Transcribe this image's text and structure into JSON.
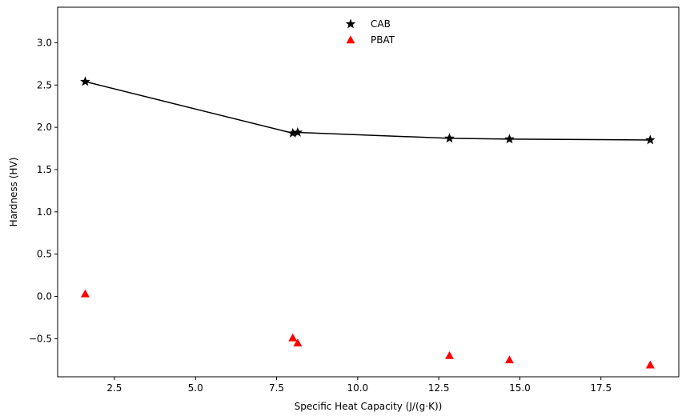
{
  "chart_data": {
    "type": "scatter",
    "xlabel": "Specific Heat Capacity (J/(g·K))",
    "ylabel": "Hardness (HV)",
    "xlim": [
      0.75,
      19.9
    ],
    "ylim": [
      -0.95,
      3.42
    ],
    "x_ticks": [
      2.5,
      5.0,
      7.5,
      10.0,
      12.5,
      15.0,
      17.5
    ],
    "x_tick_labels": [
      "2.5",
      "5.0",
      "7.5",
      "10.0",
      "12.5",
      "15.0",
      "17.5"
    ],
    "y_ticks": [
      -0.5,
      0.0,
      0.5,
      1.0,
      1.5,
      2.0,
      2.5,
      3.0
    ],
    "y_tick_labels": [
      "−0.5",
      "0.0",
      "0.5",
      "1.0",
      "1.5",
      "2.0",
      "2.5",
      "3.0"
    ],
    "grid": false,
    "legend_position": "top-center",
    "series": [
      {
        "name": "CAB",
        "marker": "star",
        "color": "#000000",
        "connect_line": true,
        "x": [
          1.6,
          8.0,
          8.15,
          12.83,
          14.68,
          19.02
        ],
        "y": [
          2.54,
          1.93,
          1.94,
          1.87,
          1.86,
          1.85
        ]
      },
      {
        "name": "PBAT",
        "marker": "triangle",
        "color": "#ff0000",
        "connect_line": false,
        "x": [
          1.6,
          8.0,
          8.15,
          12.83,
          14.68,
          19.02
        ],
        "y": [
          0.03,
          -0.49,
          -0.55,
          -0.7,
          -0.75,
          -0.81
        ]
      }
    ]
  }
}
